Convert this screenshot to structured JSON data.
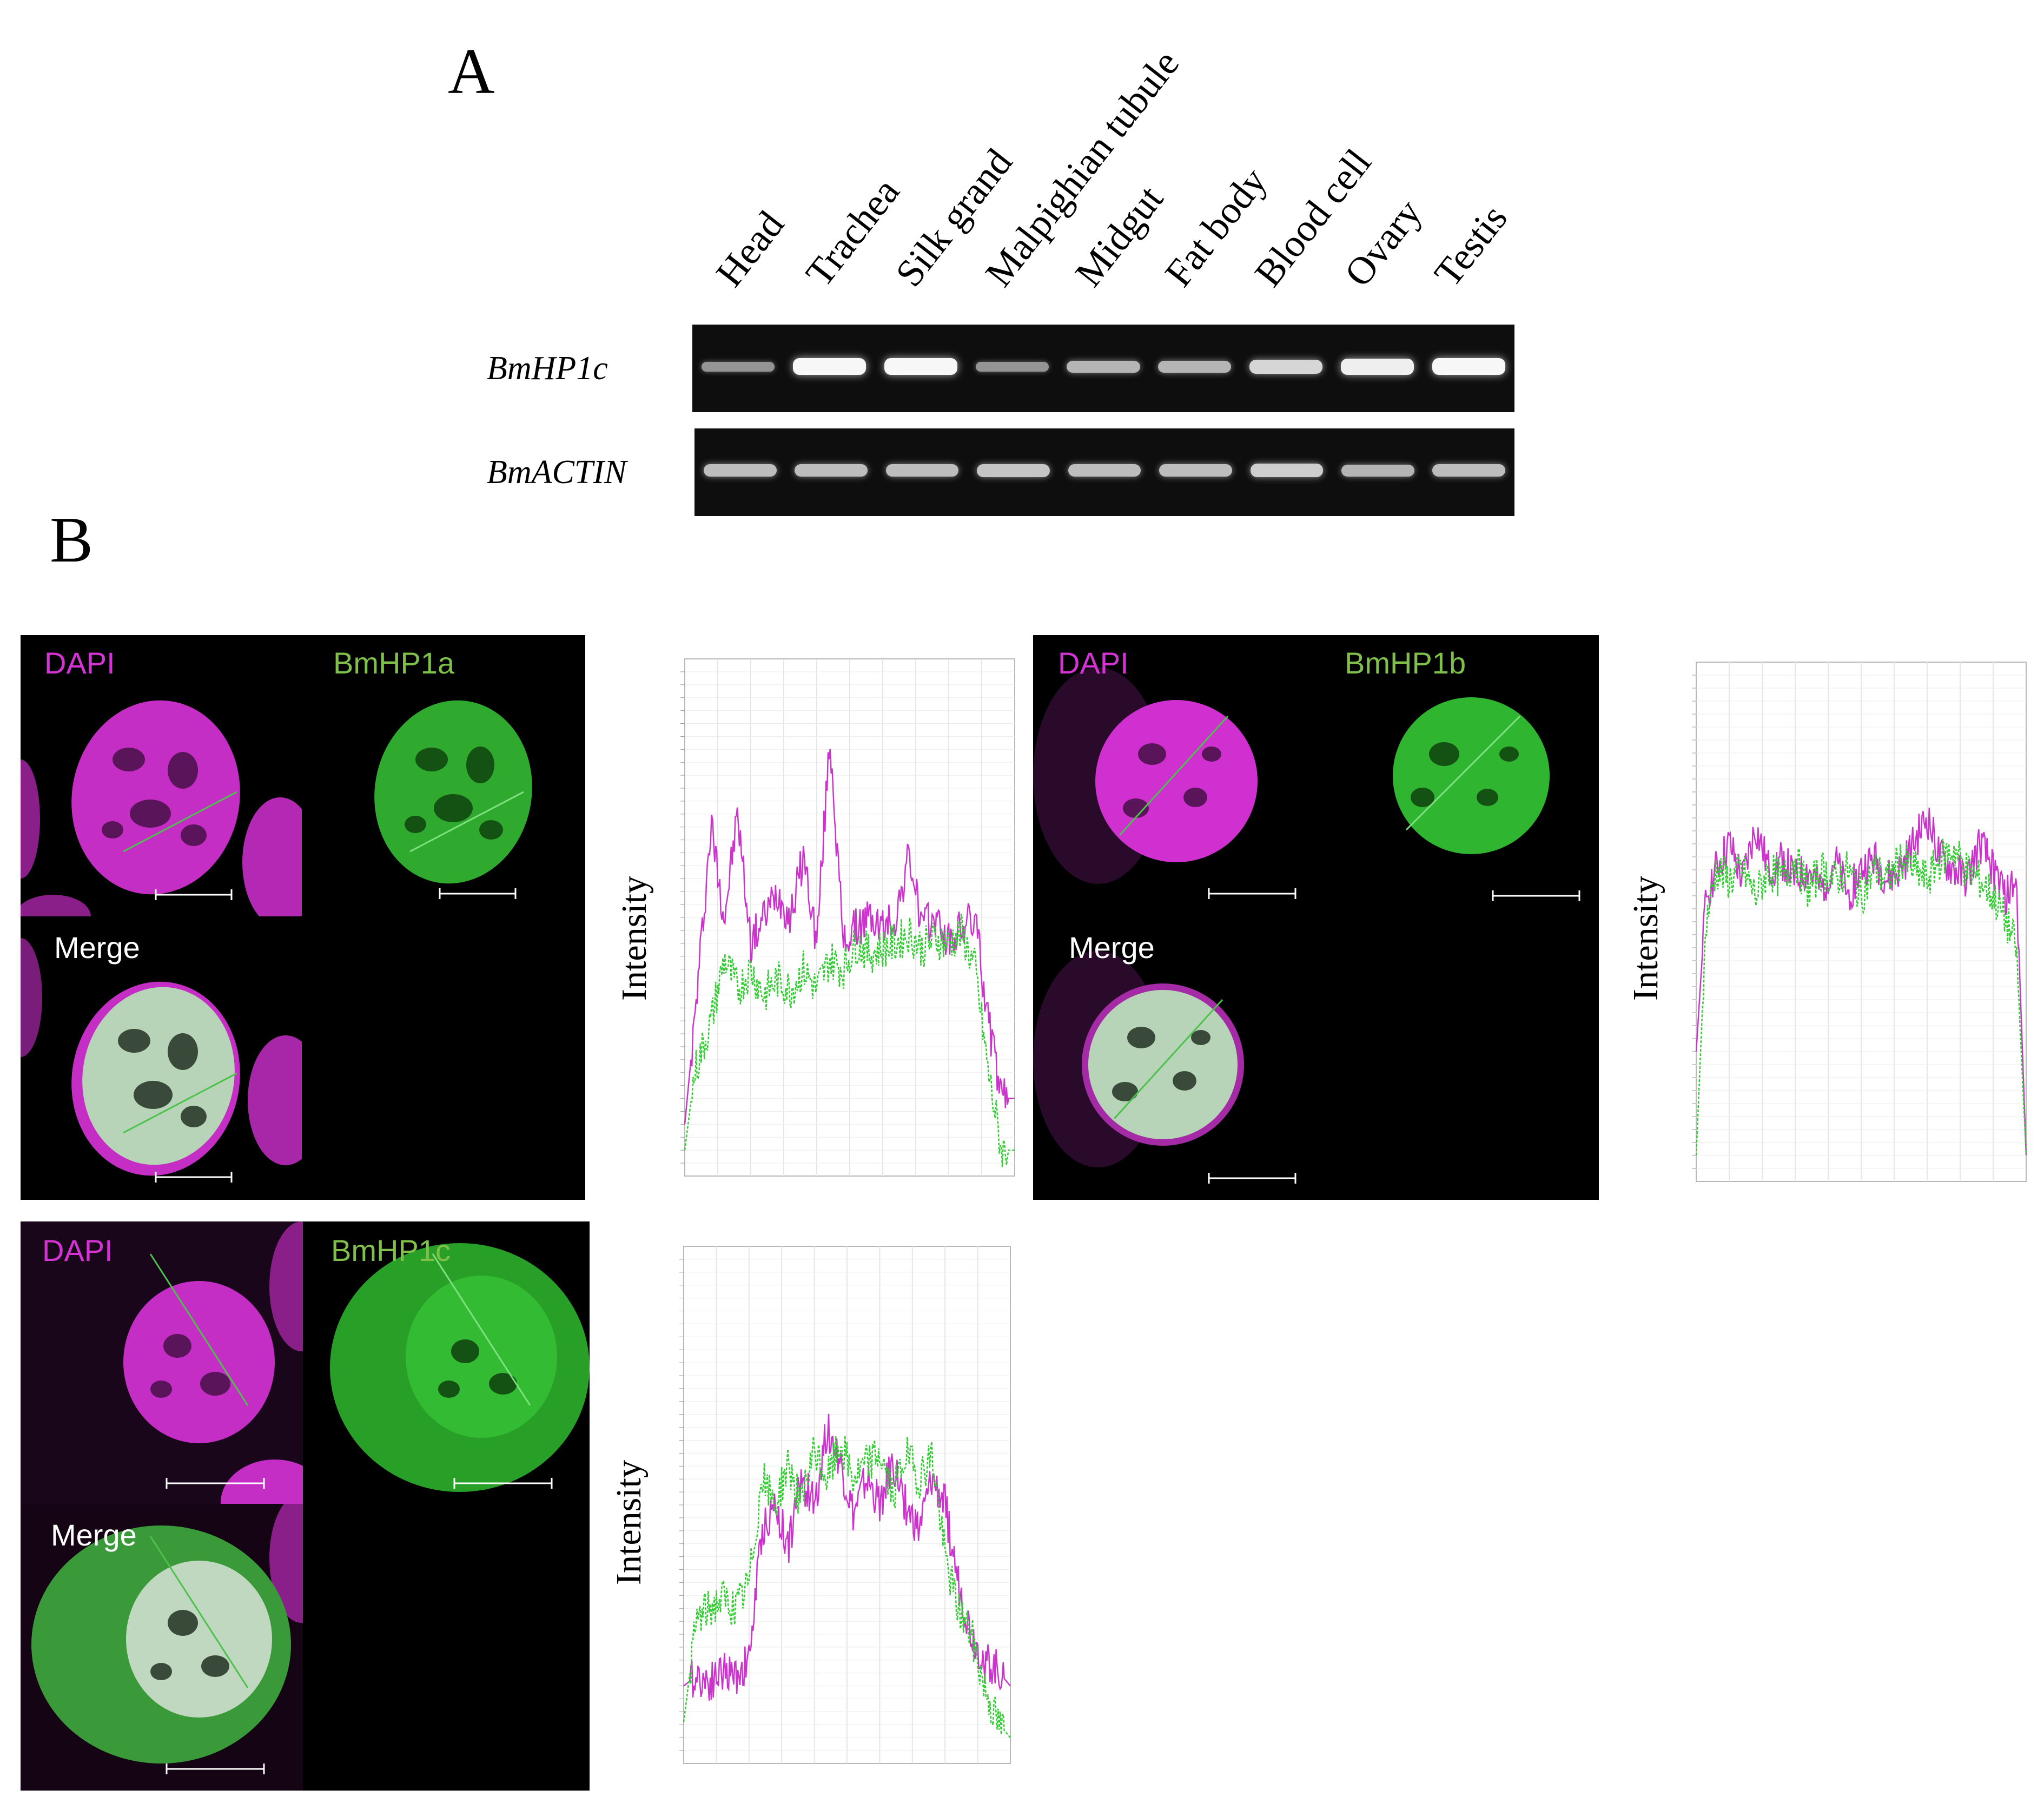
{
  "panel_a": {
    "letter": "A",
    "lanes": [
      "Head",
      "Trachea",
      "Silk grand",
      "Malpighian tubule",
      "Midgut",
      "Fat body",
      "Blood cell",
      "Ovary",
      "Testis"
    ],
    "genes": [
      {
        "name": "BmHP1c",
        "band_intensity": [
          0.35,
          0.95,
          0.95,
          0.35,
          0.55,
          0.55,
          0.75,
          0.9,
          0.95
        ]
      },
      {
        "name": "BmACTIN",
        "band_intensity": [
          0.6,
          0.6,
          0.6,
          0.65,
          0.6,
          0.6,
          0.7,
          0.55,
          0.6
        ]
      }
    ]
  },
  "panel_b": {
    "letter": "B",
    "channel_dapi": "DAPI",
    "channel_merge": "Merge",
    "channels_protein": [
      "BmHP1a",
      "BmHP1b",
      "BmHP1c"
    ],
    "intensity_label": "Intensity",
    "colors": {
      "dapi": "#d633d6",
      "protein": "#7ec04a",
      "profile_magenta": "#cc33cc",
      "profile_green": "#33cc33"
    }
  },
  "chart_data": [
    {
      "type": "line",
      "title": "",
      "ylabel": "Intensity",
      "series": [
        {
          "name": "DAPI",
          "color": "#cc33cc",
          "x": [
            0,
            0.03,
            0.08,
            0.12,
            0.16,
            0.2,
            0.24,
            0.28,
            0.32,
            0.36,
            0.4,
            0.44,
            0.48,
            0.52,
            0.56,
            0.6,
            0.64,
            0.68,
            0.72,
            0.76,
            0.8,
            0.84,
            0.88,
            0.92,
            0.96,
            1
          ],
          "y": [
            0.1,
            0.3,
            0.68,
            0.5,
            0.7,
            0.45,
            0.5,
            0.55,
            0.5,
            0.62,
            0.45,
            0.85,
            0.45,
            0.48,
            0.5,
            0.48,
            0.5,
            0.62,
            0.48,
            0.5,
            0.45,
            0.48,
            0.5,
            0.3,
            0.15,
            0.15
          ]
        },
        {
          "name": "BmHP1a",
          "color": "#33cc33",
          "x": [
            0,
            0.03,
            0.08,
            0.12,
            0.16,
            0.2,
            0.24,
            0.28,
            0.32,
            0.36,
            0.4,
            0.44,
            0.48,
            0.52,
            0.56,
            0.6,
            0.64,
            0.68,
            0.72,
            0.76,
            0.8,
            0.84,
            0.88,
            0.92,
            0.96,
            1
          ],
          "y": [
            0.05,
            0.2,
            0.3,
            0.42,
            0.36,
            0.4,
            0.35,
            0.38,
            0.36,
            0.4,
            0.36,
            0.42,
            0.4,
            0.45,
            0.43,
            0.44,
            0.45,
            0.47,
            0.44,
            0.46,
            0.45,
            0.47,
            0.4,
            0.2,
            0.05,
            0.05
          ]
        }
      ]
    },
    {
      "type": "line",
      "title": "",
      "ylabel": "Intensity",
      "series": [
        {
          "name": "DAPI",
          "color": "#cc33cc",
          "x": [
            0,
            0.03,
            0.06,
            0.1,
            0.14,
            0.18,
            0.22,
            0.26,
            0.3,
            0.34,
            0.38,
            0.42,
            0.46,
            0.5,
            0.54,
            0.58,
            0.62,
            0.66,
            0.7,
            0.74,
            0.78,
            0.82,
            0.86,
            0.9,
            0.94,
            0.97,
            1
          ],
          "y": [
            0.25,
            0.55,
            0.6,
            0.65,
            0.58,
            0.68,
            0.6,
            0.62,
            0.58,
            0.6,
            0.56,
            0.62,
            0.55,
            0.6,
            0.62,
            0.58,
            0.6,
            0.65,
            0.7,
            0.62,
            0.6,
            0.58,
            0.65,
            0.6,
            0.55,
            0.58,
            0.05
          ]
        },
        {
          "name": "BmHP1b",
          "color": "#33cc33",
          "x": [
            0,
            0.03,
            0.06,
            0.1,
            0.14,
            0.18,
            0.22,
            0.26,
            0.3,
            0.34,
            0.38,
            0.42,
            0.46,
            0.5,
            0.54,
            0.58,
            0.62,
            0.66,
            0.7,
            0.74,
            0.78,
            0.82,
            0.86,
            0.9,
            0.94,
            0.97,
            1
          ],
          "y": [
            0.05,
            0.5,
            0.6,
            0.58,
            0.6,
            0.55,
            0.6,
            0.58,
            0.62,
            0.56,
            0.6,
            0.58,
            0.6,
            0.55,
            0.6,
            0.58,
            0.62,
            0.6,
            0.58,
            0.62,
            0.64,
            0.6,
            0.58,
            0.55,
            0.5,
            0.45,
            0.05
          ]
        }
      ]
    },
    {
      "type": "line",
      "title": "",
      "ylabel": "Intensity",
      "series": [
        {
          "name": "DAPI",
          "color": "#cc33cc",
          "x": [
            0,
            0.04,
            0.08,
            0.12,
            0.16,
            0.2,
            0.24,
            0.28,
            0.32,
            0.36,
            0.4,
            0.44,
            0.48,
            0.52,
            0.56,
            0.6,
            0.64,
            0.68,
            0.72,
            0.76,
            0.8,
            0.84,
            0.88,
            0.92,
            0.96,
            1
          ],
          "y": [
            0.15,
            0.17,
            0.16,
            0.18,
            0.17,
            0.2,
            0.45,
            0.5,
            0.42,
            0.55,
            0.5,
            0.65,
            0.58,
            0.48,
            0.55,
            0.5,
            0.58,
            0.5,
            0.45,
            0.55,
            0.5,
            0.35,
            0.25,
            0.2,
            0.18,
            0.15
          ]
        },
        {
          "name": "BmHP1c",
          "color": "#33cc33",
          "x": [
            0,
            0.04,
            0.08,
            0.12,
            0.16,
            0.2,
            0.24,
            0.28,
            0.32,
            0.36,
            0.4,
            0.44,
            0.48,
            0.52,
            0.56,
            0.6,
            0.64,
            0.68,
            0.72,
            0.76,
            0.8,
            0.84,
            0.88,
            0.92,
            0.96,
            1
          ],
          "y": [
            0.08,
            0.28,
            0.3,
            0.32,
            0.3,
            0.35,
            0.55,
            0.5,
            0.58,
            0.5,
            0.6,
            0.55,
            0.62,
            0.55,
            0.58,
            0.6,
            0.52,
            0.6,
            0.55,
            0.6,
            0.4,
            0.3,
            0.25,
            0.15,
            0.08,
            0.05
          ]
        }
      ]
    }
  ]
}
